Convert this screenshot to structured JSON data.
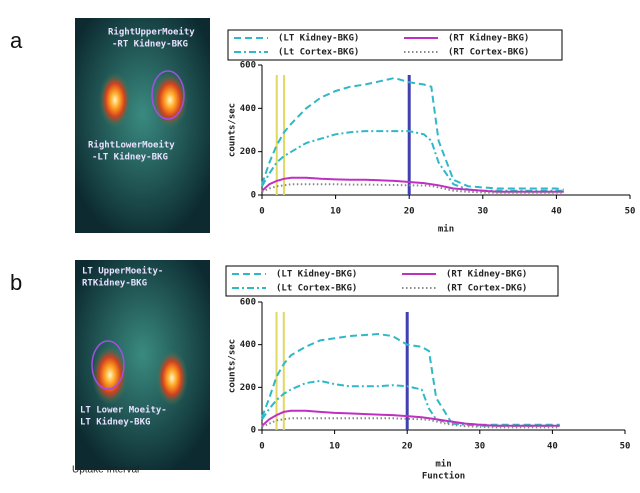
{
  "panels": [
    {
      "label": "a",
      "image_labels": [
        "RightUpperMoeity",
        "-RT Kidney-BKG",
        "RightLowerMoeity",
        "-LT Kidney-BKG"
      ]
    },
    {
      "label": "b",
      "image_labels": [
        "LT UpperMoeity-",
        "RTKidney-BKG",
        "LT Lower Moeity-",
        "LT Kidney-BKG"
      ]
    }
  ],
  "footer": {
    "text": "Uptake Interval"
  },
  "chart_data": [
    {
      "type": "line",
      "xlabel": "min",
      "ylabel": "counts/sec",
      "xlim": [
        0,
        50
      ],
      "xticks": [
        0,
        10,
        20,
        30,
        40,
        50
      ],
      "ylim": [
        0,
        600
      ],
      "yticks": [
        0,
        200,
        400,
        600
      ],
      "x": [
        0,
        1,
        2,
        3,
        4,
        6,
        8,
        10,
        12,
        14,
        16,
        18,
        20,
        22,
        23,
        24,
        26,
        28,
        30,
        32,
        34,
        36,
        38,
        40,
        41
      ],
      "vlines": [
        {
          "x": 2,
          "color": "#e0d860"
        },
        {
          "x": 3,
          "color": "#e0d860"
        },
        {
          "x": 20,
          "color": "#4040b0"
        }
      ],
      "series": [
        {
          "name": "(LT Kidney-BKG)",
          "color": "#2fb8c8",
          "style": "dashed",
          "values": [
            50,
            150,
            230,
            290,
            330,
            400,
            450,
            480,
            500,
            510,
            525,
            540,
            520,
            510,
            500,
            250,
            70,
            40,
            35,
            30,
            30,
            30,
            30,
            30,
            25
          ]
        },
        {
          "name": "(Lt Cortex-BKG)",
          "color": "#2fb8c8",
          "style": "dashdot",
          "values": [
            40,
            100,
            150,
            180,
            200,
            240,
            260,
            280,
            290,
            295,
            295,
            295,
            295,
            280,
            250,
            150,
            50,
            25,
            20,
            20,
            20,
            20,
            20,
            20,
            20
          ]
        },
        {
          "name": "(RT Kidney-BKG)",
          "color": "#c030c0",
          "style": "solid",
          "values": [
            20,
            50,
            65,
            75,
            80,
            80,
            75,
            72,
            70,
            70,
            68,
            65,
            60,
            55,
            50,
            45,
            30,
            25,
            20,
            15,
            15,
            15,
            15,
            15,
            15
          ]
        },
        {
          "name": "(RT Cortex-BKG)",
          "color": "#888888",
          "style": "dotted",
          "values": [
            15,
            30,
            40,
            45,
            50,
            50,
            50,
            50,
            48,
            48,
            47,
            46,
            45,
            44,
            42,
            35,
            20,
            15,
            12,
            10,
            10,
            10,
            10,
            10,
            10
          ]
        }
      ]
    },
    {
      "type": "line",
      "xlabel": "min",
      "note": "Function",
      "ylabel": "counts/sec",
      "xlim": [
        0,
        50
      ],
      "xticks": [
        0,
        10,
        20,
        30,
        40,
        50
      ],
      "ylim": [
        0,
        600
      ],
      "yticks": [
        0,
        200,
        400,
        600
      ],
      "x": [
        0,
        1,
        2,
        3,
        4,
        6,
        8,
        10,
        12,
        14,
        16,
        18,
        20,
        22,
        23,
        24,
        26,
        28,
        30,
        32,
        34,
        36,
        38,
        40,
        41
      ],
      "vlines": [
        {
          "x": 2,
          "color": "#e0d860"
        },
        {
          "x": 3,
          "color": "#e0d860"
        },
        {
          "x": 20,
          "color": "#4040b0"
        }
      ],
      "series": [
        {
          "name": "(LT Kidney-BKG)",
          "color": "#2fb8c8",
          "style": "dashed",
          "values": [
            60,
            150,
            250,
            310,
            350,
            390,
            420,
            430,
            440,
            445,
            450,
            440,
            400,
            390,
            370,
            150,
            40,
            30,
            25,
            25,
            25,
            25,
            25,
            25,
            25
          ]
        },
        {
          "name": "(Lt Cortex-BKG)",
          "color": "#2fb8c8",
          "style": "dashdot",
          "values": [
            50,
            100,
            140,
            170,
            190,
            220,
            230,
            215,
            205,
            205,
            205,
            210,
            205,
            190,
            100,
            50,
            30,
            25,
            20,
            20,
            20,
            20,
            20,
            20,
            20
          ]
        },
        {
          "name": "(RT Kidney-BKG)",
          "color": "#c030c0",
          "style": "solid",
          "values": [
            20,
            50,
            70,
            85,
            90,
            90,
            85,
            80,
            78,
            75,
            72,
            70,
            65,
            60,
            55,
            50,
            40,
            30,
            25,
            20,
            20,
            20,
            20,
            20,
            20
          ]
        },
        {
          "name": "(RT Cortex-DKG)",
          "color": "#888888",
          "style": "dotted",
          "values": [
            15,
            30,
            45,
            50,
            55,
            55,
            55,
            55,
            55,
            55,
            55,
            55,
            52,
            50,
            48,
            40,
            25,
            18,
            15,
            12,
            12,
            12,
            12,
            12,
            12
          ]
        }
      ]
    }
  ]
}
